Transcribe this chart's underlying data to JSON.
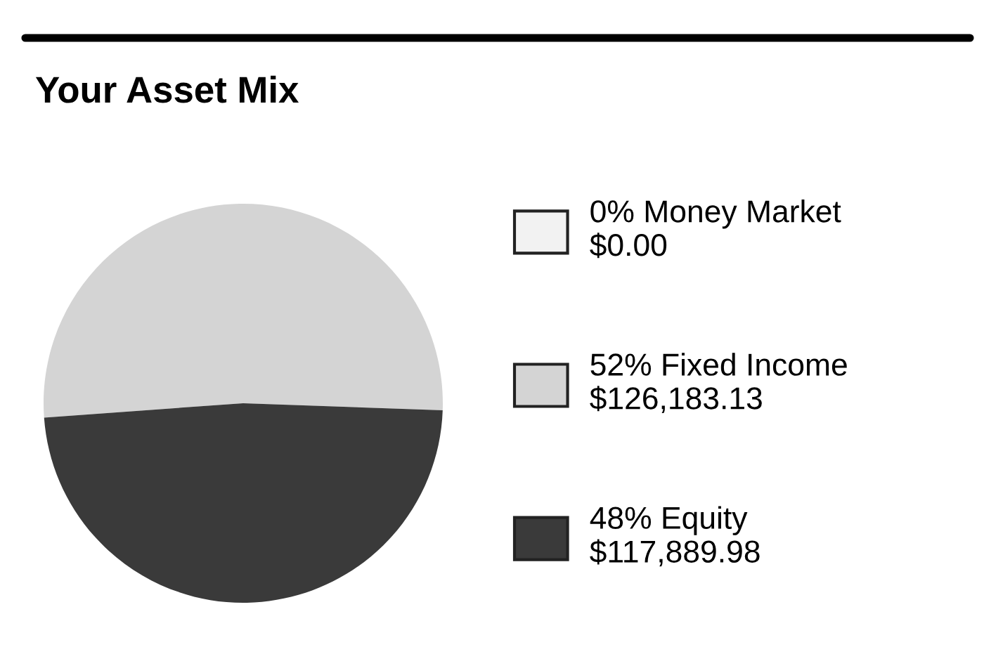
{
  "chart_data": {
    "type": "pie",
    "title": "Your Asset Mix",
    "categories": [
      "0% Money Market",
      "52% Fixed Income",
      "48% Equity"
    ],
    "values": [
      0,
      126183.13,
      117889.98
    ],
    "value_labels": [
      "$0.00",
      "$126,183.13",
      "$117,889.98"
    ],
    "colors": [
      "#f2f2f2",
      "#d4d4d4",
      "#3a3a3a"
    ],
    "legend": "right"
  }
}
